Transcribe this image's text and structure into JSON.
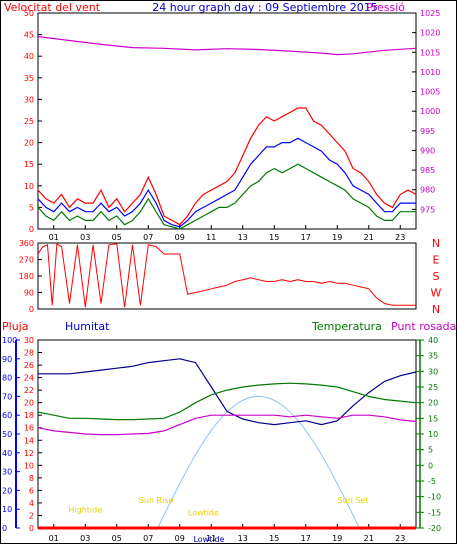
{
  "header": {
    "title": "24 hour graph day : 09 Septiembre 2015",
    "wind_label": "Velocitat del vent",
    "pressure_label": "Pressió"
  },
  "colors": {
    "red": "#ff0000",
    "blue": "#0000ff",
    "navy": "#00008b",
    "green": "#007a00",
    "magenta": "#cc00cc",
    "yellow": "#e6d200",
    "skyblue": "#8fc2f0",
    "title_blue": "#0000cc",
    "border": "#000000"
  },
  "chart_data": [
    {
      "type": "line",
      "name": "wind_pressure",
      "x_ticks": [
        "01",
        "03",
        "05",
        "07",
        "09",
        "11",
        "13",
        "15",
        "17",
        "19",
        "21",
        "23"
      ],
      "x_range": [
        0,
        24
      ],
      "left_axis": {
        "range": [
          0,
          50
        ],
        "ticks": [
          "0",
          "5",
          "10",
          "15",
          "20",
          "25",
          "30",
          "35",
          "40",
          "45",
          "50"
        ]
      },
      "right_axis": {
        "range": [
          970,
          1025
        ],
        "ticks": [
          "975",
          "980",
          "985",
          "990",
          "995",
          "1000",
          "1005",
          "1010",
          "1015",
          "1020",
          "1025"
        ]
      },
      "series": [
        {
          "key": "pressure",
          "axis": "right",
          "color": "magenta",
          "x": [
            0,
            2,
            4,
            6,
            8,
            10,
            12,
            14,
            16,
            18,
            19,
            20,
            22,
            24
          ],
          "y": [
            1019,
            1018,
            1017,
            1016.2,
            1016,
            1015.6,
            1015.9,
            1015.7,
            1015.3,
            1014.8,
            1014.4,
            1014.6,
            1015.5,
            1016
          ]
        },
        {
          "key": "gust",
          "axis": "left",
          "color": "red",
          "x": [
            0,
            0.5,
            1,
            1.5,
            2,
            2.5,
            3,
            3.5,
            4,
            4.5,
            5,
            5.5,
            6,
            6.5,
            7,
            7.5,
            8,
            8.5,
            9,
            9.5,
            10,
            10.5,
            11,
            11.5,
            12,
            12.5,
            13,
            13.5,
            14,
            14.5,
            15,
            15.5,
            16,
            16.5,
            17,
            17.5,
            18,
            18.5,
            19,
            19.5,
            20,
            20.5,
            21,
            21.5,
            22,
            22.5,
            23,
            23.5,
            24
          ],
          "y": [
            9,
            7,
            6,
            8,
            5,
            7,
            6,
            6,
            9,
            5,
            7,
            4,
            6,
            8,
            12,
            8,
            3,
            2,
            1,
            3,
            6,
            8,
            9,
            10,
            11,
            13,
            17,
            21,
            24,
            26,
            25,
            26,
            27,
            28,
            28,
            25,
            24,
            22,
            20,
            18,
            14,
            13,
            11,
            8,
            6,
            5,
            8,
            9,
            8
          ]
        },
        {
          "key": "avg",
          "axis": "left",
          "color": "blue",
          "x": [
            0,
            0.5,
            1,
            1.5,
            2,
            2.5,
            3,
            3.5,
            4,
            4.5,
            5,
            5.5,
            6,
            6.5,
            7,
            7.5,
            8,
            8.5,
            9,
            9.5,
            10,
            10.5,
            11,
            11.5,
            12,
            12.5,
            13,
            13.5,
            14,
            14.5,
            15,
            15.5,
            16,
            16.5,
            17,
            17.5,
            18,
            18.5,
            19,
            19.5,
            20,
            20.5,
            21,
            21.5,
            22,
            22.5,
            23,
            23.5,
            24
          ],
          "y": [
            7,
            5,
            4,
            6,
            4,
            5,
            4,
            4,
            6,
            4,
            5,
            3,
            4,
            6,
            9,
            6,
            2,
            1,
            0.5,
            2,
            4,
            5,
            6,
            7,
            8,
            9,
            12,
            15,
            17,
            19,
            19,
            20,
            20,
            21,
            20,
            19,
            18,
            16,
            15,
            13,
            10,
            9,
            8,
            6,
            4,
            4,
            6,
            6,
            6
          ]
        },
        {
          "key": "wind",
          "axis": "left",
          "color": "green",
          "x": [
            0,
            0.5,
            1,
            1.5,
            2,
            2.5,
            3,
            3.5,
            4,
            4.5,
            5,
            5.5,
            6,
            6.5,
            7,
            7.5,
            8,
            8.5,
            9,
            9.5,
            10,
            10.5,
            11,
            11.5,
            12,
            12.5,
            13,
            13.5,
            14,
            14.5,
            15,
            15.5,
            16,
            16.5,
            17,
            17.5,
            18,
            18.5,
            19,
            19.5,
            20,
            20.5,
            21,
            21.5,
            22,
            22.5,
            23,
            23.5,
            24
          ],
          "y": [
            5,
            3,
            2,
            4,
            2,
            3,
            2,
            2,
            4,
            2,
            3,
            1,
            2,
            4,
            7,
            4,
            1,
            0.5,
            0,
            1,
            2,
            3,
            4,
            5,
            5,
            6,
            8,
            10,
            11,
            13,
            14,
            13,
            14,
            15,
            14,
            13,
            12,
            11,
            10,
            9,
            7,
            6,
            5,
            3,
            2,
            2,
            4,
            4,
            4
          ]
        }
      ]
    },
    {
      "type": "scatter",
      "name": "wind_direction",
      "x_range": [
        0,
        24
      ],
      "y_range": [
        0,
        360
      ],
      "left_ticks": [
        "0",
        "90",
        "180",
        "270",
        "360"
      ],
      "right_letters": [
        "N",
        "W",
        "S",
        "E",
        "N"
      ],
      "series": [
        {
          "key": "direction",
          "color": "red",
          "x": [
            0,
            0.3,
            0.6,
            0.9,
            1.2,
            1.5,
            2,
            2.5,
            3,
            3.5,
            4,
            4.5,
            5,
            5.5,
            6,
            6.5,
            7,
            7.5,
            8,
            8.5,
            9,
            9.5,
            10,
            10.5,
            11,
            11.5,
            12,
            12.5,
            13,
            13.5,
            14,
            14.5,
            15,
            15.5,
            16,
            16.5,
            17,
            17.5,
            18,
            18.5,
            19,
            19.5,
            20,
            20.5,
            21,
            21.5,
            22,
            22.5,
            23,
            23.5,
            24
          ],
          "y": [
            300,
            340,
            350,
            20,
            355,
            340,
            30,
            350,
            10,
            350,
            30,
            350,
            355,
            10,
            350,
            20,
            350,
            340,
            300,
            300,
            300,
            80,
            90,
            100,
            110,
            120,
            130,
            150,
            160,
            170,
            160,
            150,
            150,
            160,
            150,
            160,
            150,
            150,
            140,
            150,
            140,
            140,
            130,
            120,
            110,
            60,
            30,
            20,
            20,
            20,
            20
          ]
        }
      ]
    },
    {
      "type": "line",
      "name": "temp_humidity_rain",
      "x_ticks": [
        "01",
        "03",
        "05",
        "07",
        "09",
        "11",
        "13",
        "15",
        "17",
        "19",
        "21",
        "23"
      ],
      "x_range": [
        0,
        24
      ],
      "labels": {
        "rain": "Pluja",
        "humidity": "Humitat",
        "temperature": "Temperatura",
        "dewpoint": "Punt rosada"
      },
      "left_axis_humidity": {
        "range": [
          0,
          100
        ],
        "ticks": [
          "0",
          "10",
          "20",
          "30",
          "40",
          "50",
          "60",
          "70",
          "80",
          "90",
          "100"
        ]
      },
      "left_axis_rain": {
        "range": [
          0,
          30
        ],
        "ticks": [
          "0",
          "2",
          "4",
          "6",
          "8",
          "10",
          "12",
          "14",
          "16",
          "18",
          "20",
          "22",
          "24",
          "26",
          "28",
          "30"
        ]
      },
      "right_axis_temp": {
        "range": [
          -20,
          40
        ],
        "ticks": [
          "-20",
          "-15",
          "-10",
          "-5",
          "0",
          "5",
          "10",
          "15",
          "20",
          "25",
          "30",
          "35",
          "40"
        ]
      },
      "series": [
        {
          "key": "humidity",
          "axis": "humidity",
          "color": "navy",
          "x": [
            0,
            1,
            2,
            3,
            4,
            5,
            6,
            7,
            8,
            9,
            10,
            11,
            12,
            13,
            14,
            15,
            16,
            17,
            18,
            19,
            20,
            21,
            22,
            23,
            24
          ],
          "y": [
            82,
            82,
            82,
            83,
            84,
            85,
            86,
            88,
            89,
            90,
            88,
            75,
            62,
            58,
            56,
            55,
            56,
            57,
            55,
            57,
            65,
            72,
            78,
            81,
            83
          ]
        },
        {
          "key": "temperature",
          "axis": "temp",
          "color": "green",
          "x": [
            0,
            1,
            2,
            3,
            4,
            5,
            6,
            7,
            8,
            9,
            10,
            11,
            12,
            13,
            14,
            15,
            16,
            17,
            18,
            19,
            20,
            21,
            22,
            23,
            24
          ],
          "y": [
            17,
            16,
            15,
            15,
            14.8,
            14.6,
            14.6,
            14.8,
            15,
            17,
            20,
            22.5,
            24,
            25,
            25.6,
            26,
            26.2,
            26,
            25.6,
            25,
            23.5,
            22,
            21,
            20.5,
            20
          ]
        },
        {
          "key": "dewpoint",
          "axis": "temp",
          "color": "magenta",
          "x": [
            0,
            1,
            2,
            3,
            4,
            5,
            6,
            7,
            8,
            9,
            10,
            11,
            12,
            13,
            14,
            15,
            16,
            17,
            18,
            19,
            20,
            21,
            22,
            23,
            24
          ],
          "y": [
            12,
            11,
            10.5,
            10,
            9.8,
            9.8,
            10,
            10.2,
            11,
            13,
            15,
            16,
            16,
            16,
            16,
            16,
            15.5,
            16,
            15.5,
            15,
            16,
            16,
            15.5,
            14.5,
            14
          ]
        },
        {
          "key": "rain",
          "axis": "rain",
          "color": "red",
          "x": [
            0,
            24
          ],
          "y": [
            0,
            0
          ]
        }
      ],
      "sun": {
        "color": "skyblue",
        "rise_hour": 7.6,
        "set_hour": 20.4,
        "peak_temp": 22
      },
      "annotations": [
        {
          "text": "Hightide",
          "x_hour": 3,
          "temp": -15,
          "color": "yellow"
        },
        {
          "text": "Sun Rise",
          "x_hour": 7.5,
          "temp": -12,
          "color": "yellow"
        },
        {
          "text": "Lowtide",
          "x_hour": 10.5,
          "temp": -16,
          "color": "yellow"
        },
        {
          "text": "Sun Set",
          "x_hour": 20,
          "temp": -12,
          "color": "yellow"
        }
      ],
      "bottom_label": "Lowtide"
    }
  ]
}
